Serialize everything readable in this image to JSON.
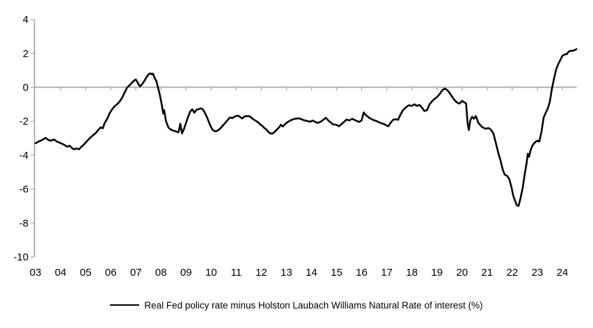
{
  "chart_data": {
    "type": "line",
    "title": "",
    "xlabel": "",
    "ylabel": "",
    "ylim": [
      -10,
      4
    ],
    "xlim": [
      2003.0,
      2024.6
    ],
    "grid": false,
    "zero_line": true,
    "legend_position": "bottom-center",
    "axis_color": "#a9a9a9",
    "label_color": "#000000",
    "y_ticks": [
      {
        "value": 4,
        "label": "4"
      },
      {
        "value": 2,
        "label": "2"
      },
      {
        "value": 0,
        "label": "0"
      },
      {
        "value": -2,
        "label": "-2"
      },
      {
        "value": -4,
        "label": "-4"
      },
      {
        "value": -6,
        "label": "-6"
      },
      {
        "value": -8,
        "label": "-8"
      },
      {
        "value": -10,
        "label": "-10"
      }
    ],
    "x_ticks": [
      {
        "year": 2003,
        "label": "03"
      },
      {
        "year": 2004,
        "label": "04"
      },
      {
        "year": 2005,
        "label": "05"
      },
      {
        "year": 2006,
        "label": "06"
      },
      {
        "year": 2007,
        "label": "07"
      },
      {
        "year": 2008,
        "label": "08"
      },
      {
        "year": 2009,
        "label": "09"
      },
      {
        "year": 2010,
        "label": "10"
      },
      {
        "year": 2011,
        "label": "11"
      },
      {
        "year": 2012,
        "label": "12"
      },
      {
        "year": 2013,
        "label": "13"
      },
      {
        "year": 2014,
        "label": "14"
      },
      {
        "year": 2015,
        "label": "15"
      },
      {
        "year": 2016,
        "label": "16"
      },
      {
        "year": 2017,
        "label": "17"
      },
      {
        "year": 2018,
        "label": "18"
      },
      {
        "year": 2019,
        "label": "19"
      },
      {
        "year": 2020,
        "label": "20"
      },
      {
        "year": 2021,
        "label": "21"
      },
      {
        "year": 2022,
        "label": "22"
      },
      {
        "year": 2023,
        "label": "23"
      },
      {
        "year": 2024,
        "label": "24"
      }
    ],
    "series": [
      {
        "name": "Real Fed policy rate minus Holston Laubach Williams Natural Rate of interest (%)",
        "color": "#000000",
        "points": [
          [
            2003.0,
            -3.3
          ],
          [
            2003.1,
            -3.22
          ],
          [
            2003.25,
            -3.12
          ],
          [
            2003.4,
            -2.98
          ],
          [
            2003.5,
            -3.1
          ],
          [
            2003.6,
            -3.15
          ],
          [
            2003.75,
            -3.08
          ],
          [
            2003.85,
            -3.2
          ],
          [
            2003.95,
            -3.26
          ],
          [
            2004.08,
            -3.34
          ],
          [
            2004.17,
            -3.42
          ],
          [
            2004.27,
            -3.5
          ],
          [
            2004.36,
            -3.45
          ],
          [
            2004.45,
            -3.58
          ],
          [
            2004.55,
            -3.66
          ],
          [
            2004.64,
            -3.6
          ],
          [
            2004.73,
            -3.66
          ],
          [
            2004.82,
            -3.52
          ],
          [
            2004.91,
            -3.4
          ],
          [
            2005.0,
            -3.26
          ],
          [
            2005.1,
            -3.1
          ],
          [
            2005.2,
            -2.95
          ],
          [
            2005.3,
            -2.82
          ],
          [
            2005.4,
            -2.7
          ],
          [
            2005.5,
            -2.52
          ],
          [
            2005.6,
            -2.36
          ],
          [
            2005.68,
            -2.42
          ],
          [
            2005.76,
            -2.1
          ],
          [
            2005.86,
            -1.85
          ],
          [
            2005.95,
            -1.55
          ],
          [
            2006.05,
            -1.3
          ],
          [
            2006.15,
            -1.12
          ],
          [
            2006.25,
            -1.0
          ],
          [
            2006.35,
            -0.85
          ],
          [
            2006.45,
            -0.62
          ],
          [
            2006.55,
            -0.32
          ],
          [
            2006.65,
            -0.02
          ],
          [
            2006.75,
            0.12
          ],
          [
            2006.85,
            0.28
          ],
          [
            2006.95,
            0.42
          ],
          [
            2007.0,
            0.46
          ],
          [
            2007.08,
            0.25
          ],
          [
            2007.16,
            0.05
          ],
          [
            2007.25,
            0.18
          ],
          [
            2007.33,
            0.35
          ],
          [
            2007.42,
            0.58
          ],
          [
            2007.5,
            0.75
          ],
          [
            2007.58,
            0.82
          ],
          [
            2007.63,
            0.76
          ],
          [
            2007.68,
            0.8
          ],
          [
            2007.75,
            0.55
          ],
          [
            2007.82,
            0.35
          ],
          [
            2007.88,
            0.0
          ],
          [
            2007.95,
            -0.4
          ],
          [
            2008.03,
            -1.0
          ],
          [
            2008.09,
            -1.55
          ],
          [
            2008.13,
            -1.35
          ],
          [
            2008.2,
            -2.0
          ],
          [
            2008.3,
            -2.38
          ],
          [
            2008.4,
            -2.5
          ],
          [
            2008.5,
            -2.56
          ],
          [
            2008.6,
            -2.6
          ],
          [
            2008.7,
            -2.66
          ],
          [
            2008.77,
            -2.15
          ],
          [
            2008.84,
            -2.72
          ],
          [
            2008.92,
            -2.45
          ],
          [
            2009.0,
            -2.1
          ],
          [
            2009.08,
            -1.75
          ],
          [
            2009.17,
            -1.42
          ],
          [
            2009.25,
            -1.3
          ],
          [
            2009.33,
            -1.5
          ],
          [
            2009.42,
            -1.32
          ],
          [
            2009.5,
            -1.3
          ],
          [
            2009.58,
            -1.24
          ],
          [
            2009.67,
            -1.3
          ],
          [
            2009.75,
            -1.5
          ],
          [
            2009.85,
            -1.82
          ],
          [
            2009.95,
            -2.2
          ],
          [
            2010.05,
            -2.5
          ],
          [
            2010.15,
            -2.6
          ],
          [
            2010.25,
            -2.56
          ],
          [
            2010.35,
            -2.45
          ],
          [
            2010.5,
            -2.2
          ],
          [
            2010.65,
            -1.95
          ],
          [
            2010.74,
            -1.78
          ],
          [
            2010.85,
            -1.82
          ],
          [
            2010.95,
            -1.72
          ],
          [
            2011.07,
            -1.67
          ],
          [
            2011.15,
            -1.75
          ],
          [
            2011.24,
            -1.84
          ],
          [
            2011.33,
            -1.72
          ],
          [
            2011.45,
            -1.7
          ],
          [
            2011.55,
            -1.72
          ],
          [
            2011.65,
            -1.85
          ],
          [
            2011.75,
            -1.95
          ],
          [
            2011.85,
            -2.04
          ],
          [
            2011.95,
            -2.18
          ],
          [
            2012.04,
            -2.28
          ],
          [
            2012.12,
            -2.4
          ],
          [
            2012.2,
            -2.49
          ],
          [
            2012.28,
            -2.62
          ],
          [
            2012.35,
            -2.72
          ],
          [
            2012.45,
            -2.73
          ],
          [
            2012.55,
            -2.6
          ],
          [
            2012.65,
            -2.45
          ],
          [
            2012.73,
            -2.32
          ],
          [
            2012.78,
            -2.21
          ],
          [
            2012.85,
            -2.32
          ],
          [
            2012.93,
            -2.2
          ],
          [
            2013.02,
            -2.08
          ],
          [
            2013.16,
            -1.95
          ],
          [
            2013.33,
            -1.86
          ],
          [
            2013.5,
            -1.83
          ],
          [
            2013.7,
            -1.94
          ],
          [
            2013.86,
            -2.0
          ],
          [
            2013.95,
            -2.03
          ],
          [
            2014.05,
            -1.96
          ],
          [
            2014.15,
            -2.05
          ],
          [
            2014.25,
            -2.1
          ],
          [
            2014.38,
            -2.02
          ],
          [
            2014.5,
            -1.88
          ],
          [
            2014.57,
            -1.8
          ],
          [
            2014.7,
            -2.0
          ],
          [
            2014.85,
            -2.18
          ],
          [
            2015.0,
            -2.22
          ],
          [
            2015.1,
            -2.3
          ],
          [
            2015.25,
            -2.1
          ],
          [
            2015.4,
            -1.9
          ],
          [
            2015.5,
            -1.96
          ],
          [
            2015.62,
            -1.86
          ],
          [
            2015.75,
            -1.95
          ],
          [
            2015.9,
            -2.05
          ],
          [
            2016.0,
            -1.95
          ],
          [
            2016.08,
            -1.48
          ],
          [
            2016.17,
            -1.65
          ],
          [
            2016.3,
            -1.8
          ],
          [
            2016.45,
            -1.92
          ],
          [
            2016.6,
            -2.0
          ],
          [
            2016.75,
            -2.1
          ],
          [
            2016.9,
            -2.18
          ],
          [
            2017.0,
            -2.26
          ],
          [
            2017.06,
            -2.3
          ],
          [
            2017.15,
            -2.1
          ],
          [
            2017.25,
            -1.92
          ],
          [
            2017.35,
            -1.88
          ],
          [
            2017.45,
            -1.92
          ],
          [
            2017.55,
            -1.6
          ],
          [
            2017.65,
            -1.35
          ],
          [
            2017.75,
            -1.2
          ],
          [
            2017.88,
            -1.06
          ],
          [
            2018.0,
            -1.1
          ],
          [
            2018.1,
            -1.0
          ],
          [
            2018.2,
            -1.1
          ],
          [
            2018.3,
            -1.04
          ],
          [
            2018.4,
            -1.2
          ],
          [
            2018.5,
            -1.4
          ],
          [
            2018.6,
            -1.35
          ],
          [
            2018.7,
            -1.02
          ],
          [
            2018.85,
            -0.75
          ],
          [
            2019.0,
            -0.58
          ],
          [
            2019.1,
            -0.42
          ],
          [
            2019.2,
            -0.2
          ],
          [
            2019.3,
            -0.08
          ],
          [
            2019.4,
            -0.15
          ],
          [
            2019.5,
            -0.32
          ],
          [
            2019.6,
            -0.55
          ],
          [
            2019.7,
            -0.75
          ],
          [
            2019.8,
            -0.9
          ],
          [
            2019.9,
            -0.96
          ],
          [
            2020.0,
            -0.8
          ],
          [
            2020.1,
            -0.9
          ],
          [
            2020.16,
            -0.95
          ],
          [
            2020.22,
            -2.1
          ],
          [
            2020.27,
            -2.52
          ],
          [
            2020.33,
            -1.95
          ],
          [
            2020.4,
            -1.74
          ],
          [
            2020.47,
            -1.85
          ],
          [
            2020.55,
            -1.7
          ],
          [
            2020.65,
            -2.1
          ],
          [
            2020.8,
            -2.35
          ],
          [
            2020.95,
            -2.45
          ],
          [
            2021.05,
            -2.4
          ],
          [
            2021.15,
            -2.5
          ],
          [
            2021.25,
            -2.72
          ],
          [
            2021.35,
            -3.3
          ],
          [
            2021.45,
            -3.9
          ],
          [
            2021.55,
            -4.4
          ],
          [
            2021.62,
            -4.85
          ],
          [
            2021.7,
            -5.15
          ],
          [
            2021.8,
            -5.22
          ],
          [
            2021.88,
            -5.4
          ],
          [
            2021.97,
            -5.9
          ],
          [
            2022.05,
            -6.45
          ],
          [
            2022.13,
            -6.75
          ],
          [
            2022.18,
            -6.95
          ],
          [
            2022.25,
            -7.0
          ],
          [
            2022.33,
            -6.55
          ],
          [
            2022.42,
            -5.9
          ],
          [
            2022.5,
            -5.1
          ],
          [
            2022.57,
            -4.5
          ],
          [
            2022.62,
            -3.92
          ],
          [
            2022.67,
            -4.1
          ],
          [
            2022.73,
            -3.72
          ],
          [
            2022.8,
            -3.45
          ],
          [
            2022.9,
            -3.25
          ],
          [
            2023.0,
            -3.15
          ],
          [
            2023.08,
            -3.2
          ],
          [
            2023.17,
            -2.6
          ],
          [
            2023.25,
            -1.8
          ],
          [
            2023.33,
            -1.52
          ],
          [
            2023.42,
            -1.25
          ],
          [
            2023.5,
            -0.85
          ],
          [
            2023.58,
            -0.1
          ],
          [
            2023.67,
            0.55
          ],
          [
            2023.75,
            1.05
          ],
          [
            2023.83,
            1.35
          ],
          [
            2023.92,
            1.62
          ],
          [
            2024.0,
            1.85
          ],
          [
            2024.08,
            1.93
          ],
          [
            2024.17,
            1.95
          ],
          [
            2024.25,
            2.1
          ],
          [
            2024.33,
            2.15
          ],
          [
            2024.42,
            2.15
          ],
          [
            2024.5,
            2.2
          ],
          [
            2024.56,
            2.25
          ]
        ]
      }
    ]
  }
}
